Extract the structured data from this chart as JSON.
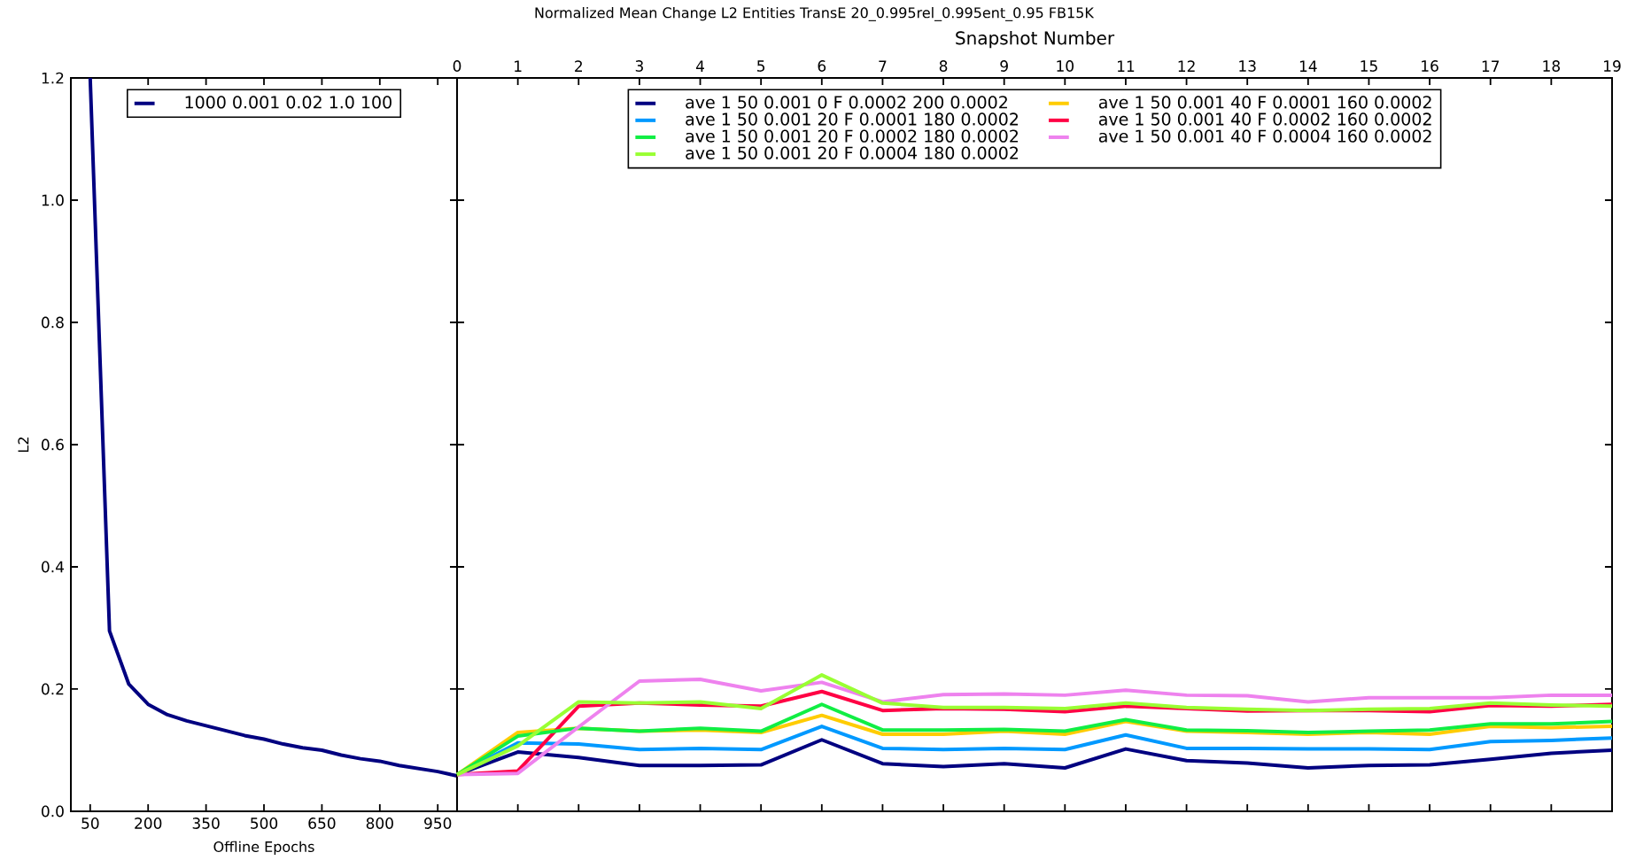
{
  "chart_data": [
    {
      "type": "line",
      "xlabel": "Offline Epochs",
      "ylabel": "L2",
      "x": [
        50,
        100,
        150,
        200,
        250,
        300,
        350,
        400,
        450,
        500,
        550,
        600,
        650,
        700,
        750,
        800,
        850,
        900,
        950,
        1000
      ],
      "xlim": [
        0,
        1000
      ],
      "xticks": [
        50,
        200,
        350,
        500,
        650,
        800,
        950
      ],
      "ylim": [
        0,
        1.2
      ],
      "yticks": [
        {
          "value": 0,
          "label": "0.0"
        },
        {
          "value": 0.2,
          "label": "0.2"
        },
        {
          "value": 0.4,
          "label": "0.4"
        },
        {
          "value": 0.6,
          "label": "0.6"
        },
        {
          "value": 0.8,
          "label": "0.8"
        },
        {
          "value": 1.0,
          "label": "1.0"
        },
        {
          "value": 1.2,
          "label": "1.2"
        }
      ],
      "legend": "top",
      "series": [
        {
          "name": "1000 0.001 0.02 1.0 100",
          "color": "#000080",
          "values": [
            1.2,
            0.295,
            0.208,
            0.175,
            0.158,
            0.148,
            0.14,
            0.132,
            0.124,
            0.118,
            0.11,
            0.104,
            0.1,
            0.092,
            0.086,
            0.082,
            0.075,
            0.07,
            0.065,
            0.058
          ]
        }
      ]
    },
    {
      "type": "line",
      "title": "Normalized Mean Change L2 Entities TransE 20_0.995rel_0.995ent_0.95 FB15K",
      "xlabel": "Snapshot Number",
      "x": [
        0,
        1,
        2,
        3,
        4,
        5,
        6,
        7,
        8,
        9,
        10,
        11,
        12,
        13,
        14,
        15,
        16,
        17,
        18,
        19
      ],
      "xlim": [
        0,
        19
      ],
      "xticks": [
        0,
        1,
        2,
        3,
        4,
        5,
        6,
        7,
        8,
        9,
        10,
        11,
        12,
        13,
        14,
        15,
        16,
        17,
        18,
        19
      ],
      "ylim": [
        0,
        1.2
      ],
      "yticks": [
        {
          "value": 0,
          "label": null
        },
        {
          "value": 0.2,
          "label": null
        },
        {
          "value": 0.4,
          "label": null
        },
        {
          "value": 0.6,
          "label": null
        },
        {
          "value": 0.8,
          "label": null
        },
        {
          "value": 1.0,
          "label": null
        },
        {
          "value": 1.2,
          "label": null
        }
      ],
      "tick_labels": "x",
      "legend": "top",
      "series": [
        {
          "name": "ave 1 50 0.001 0 F 0.0002 200 0.0002",
          "color": "#000080",
          "values": [
            0.06,
            0.097,
            0.088,
            0.075,
            0.075,
            0.076,
            0.117,
            0.078,
            0.073,
            0.078,
            0.071,
            0.102,
            0.083,
            0.079,
            0.071,
            0.075,
            0.076,
            0.085,
            0.095,
            0.1
          ]
        },
        {
          "name": "ave 1 50 0.001 20 F 0.0001 180 0.0002",
          "color": "#0099ff",
          "values": [
            0.06,
            0.112,
            0.11,
            0.101,
            0.103,
            0.101,
            0.139,
            0.103,
            0.101,
            0.103,
            0.101,
            0.125,
            0.103,
            0.103,
            0.102,
            0.102,
            0.101,
            0.114,
            0.116,
            0.12
          ]
        },
        {
          "name": "ave 1 50 0.001 20 F 0.0002 180 0.0002",
          "color": "#11ee44",
          "values": [
            0.06,
            0.123,
            0.136,
            0.131,
            0.136,
            0.131,
            0.175,
            0.133,
            0.133,
            0.134,
            0.131,
            0.15,
            0.133,
            0.132,
            0.129,
            0.131,
            0.133,
            0.143,
            0.143,
            0.147
          ]
        },
        {
          "name": "ave 1 50 0.001 20 F 0.0004 180 0.0002",
          "color": "#99ff33",
          "values": [
            0.06,
            0.107,
            0.179,
            0.177,
            0.179,
            0.168,
            0.223,
            0.177,
            0.17,
            0.17,
            0.168,
            0.177,
            0.17,
            0.167,
            0.165,
            0.167,
            0.168,
            0.177,
            0.174,
            0.172
          ]
        },
        {
          "name": "ave 1 50 0.001 40 F 0.0001 160 0.0002",
          "color": "#ffcc00",
          "values": [
            0.06,
            0.129,
            0.136,
            0.131,
            0.133,
            0.129,
            0.157,
            0.126,
            0.126,
            0.131,
            0.126,
            0.147,
            0.131,
            0.129,
            0.126,
            0.129,
            0.126,
            0.139,
            0.137,
            0.139
          ]
        },
        {
          "name": "ave 1 50 0.001 40 F 0.0002 160 0.0002",
          "color": "#ff0044",
          "values": [
            0.06,
            0.066,
            0.172,
            0.177,
            0.174,
            0.172,
            0.196,
            0.165,
            0.168,
            0.167,
            0.163,
            0.172,
            0.168,
            0.164,
            0.165,
            0.165,
            0.163,
            0.173,
            0.172,
            0.175
          ]
        },
        {
          "name": "ave 1 50 0.001 40 F 0.0004 160 0.0002",
          "color": "#ee82ee",
          "values": [
            0.06,
            0.062,
            0.138,
            0.213,
            0.216,
            0.197,
            0.211,
            0.179,
            0.191,
            0.192,
            0.19,
            0.198,
            0.19,
            0.189,
            0.179,
            0.186,
            0.186,
            0.186,
            0.19,
            0.19
          ]
        }
      ]
    }
  ]
}
